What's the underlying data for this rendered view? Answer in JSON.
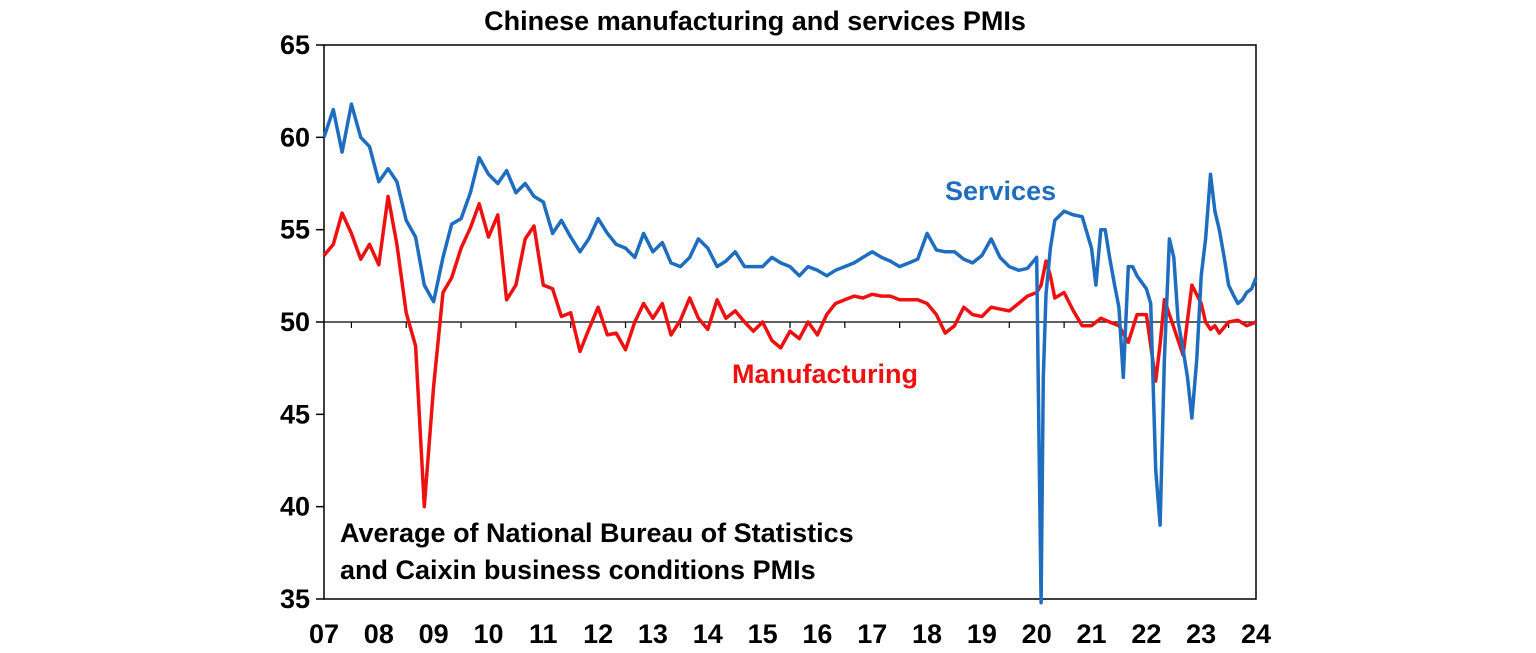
{
  "chart_data": {
    "type": "line",
    "title": "Chinese manufacturing and services PMIs",
    "note_lines": [
      "Average of National Bureau of Statistics",
      "and Caixin business conditions PMIs"
    ],
    "xlabel": "",
    "ylabel": "",
    "ylim": [
      35,
      65
    ],
    "yticks": [
      35,
      40,
      45,
      50,
      55,
      60,
      65
    ],
    "xlim": [
      2007.0,
      2024.0
    ],
    "xtick_labels": [
      "07",
      "08",
      "09",
      "10",
      "11",
      "12",
      "13",
      "14",
      "15",
      "16",
      "17",
      "18",
      "19",
      "20",
      "21",
      "22",
      "23",
      "24"
    ],
    "reference_line": 50,
    "grid": false,
    "series": [
      {
        "name": "Services",
        "color": "#1F6DBF",
        "x": [
          2007.0,
          2007.17,
          2007.33,
          2007.5,
          2007.67,
          2007.83,
          2008.0,
          2008.17,
          2008.33,
          2008.5,
          2008.67,
          2008.83,
          2009.0,
          2009.17,
          2009.33,
          2009.5,
          2009.67,
          2009.83,
          2010.0,
          2010.17,
          2010.33,
          2010.5,
          2010.67,
          2010.83,
          2011.0,
          2011.17,
          2011.33,
          2011.5,
          2011.67,
          2011.83,
          2012.0,
          2012.17,
          2012.33,
          2012.5,
          2012.67,
          2012.83,
          2013.0,
          2013.17,
          2013.33,
          2013.5,
          2013.67,
          2013.83,
          2014.0,
          2014.17,
          2014.33,
          2014.5,
          2014.67,
          2014.83,
          2015.0,
          2015.17,
          2015.33,
          2015.5,
          2015.67,
          2015.83,
          2016.0,
          2016.17,
          2016.33,
          2016.5,
          2016.67,
          2016.83,
          2017.0,
          2017.17,
          2017.33,
          2017.5,
          2017.67,
          2017.83,
          2018.0,
          2018.17,
          2018.33,
          2018.5,
          2018.67,
          2018.83,
          2019.0,
          2019.17,
          2019.33,
          2019.5,
          2019.67,
          2019.83,
          2020.0,
          2020.04,
          2020.08,
          2020.12,
          2020.17,
          2020.25,
          2020.33,
          2020.5,
          2020.67,
          2020.83,
          2021.0,
          2021.08,
          2021.17,
          2021.25,
          2021.33,
          2021.42,
          2021.5,
          2021.58,
          2021.67,
          2021.75,
          2021.83,
          2022.0,
          2022.08,
          2022.17,
          2022.25,
          2022.33,
          2022.42,
          2022.5,
          2022.58,
          2022.67,
          2022.75,
          2022.83,
          2022.92,
          2023.0,
          2023.08,
          2023.17,
          2023.25,
          2023.33,
          2023.42,
          2023.5,
          2023.58,
          2023.67,
          2023.75,
          2023.83,
          2023.92,
          2024.0
        ],
        "values": [
          60.0,
          61.5,
          59.2,
          61.8,
          60.0,
          59.5,
          57.6,
          58.3,
          57.6,
          55.5,
          54.6,
          52.0,
          51.1,
          53.5,
          55.3,
          55.6,
          57.0,
          58.9,
          58.0,
          57.5,
          58.2,
          57.0,
          57.5,
          56.8,
          56.5,
          54.8,
          55.5,
          54.6,
          53.8,
          54.5,
          55.6,
          54.8,
          54.2,
          54.0,
          53.5,
          54.8,
          53.8,
          54.3,
          53.2,
          53.0,
          53.5,
          54.5,
          54.0,
          53.0,
          53.3,
          53.8,
          53.0,
          53.0,
          53.0,
          53.5,
          53.2,
          53.0,
          52.5,
          53.0,
          52.8,
          52.5,
          52.8,
          53.0,
          53.2,
          53.5,
          53.8,
          53.5,
          53.3,
          53.0,
          53.2,
          53.4,
          54.8,
          53.9,
          53.8,
          53.8,
          53.4,
          53.2,
          53.6,
          54.5,
          53.5,
          53.0,
          52.8,
          52.9,
          53.5,
          44.0,
          34.8,
          47.0,
          51.5,
          54.0,
          55.5,
          56.0,
          55.8,
          55.7,
          54.0,
          52.0,
          55.0,
          55.0,
          53.5,
          52.0,
          50.8,
          47.0,
          53.0,
          53.0,
          52.5,
          51.8,
          51.0,
          42.0,
          39.0,
          48.0,
          54.5,
          53.5,
          50.0,
          48.5,
          47.0,
          44.8,
          48.0,
          52.5,
          54.5,
          58.0,
          56.0,
          55.0,
          53.5,
          52.0,
          51.5,
          51.0,
          51.2,
          51.6,
          51.8,
          52.4
        ]
      },
      {
        "name": "Manufacturing",
        "color": "#EE1111",
        "x": [
          2007.0,
          2007.17,
          2007.33,
          2007.5,
          2007.67,
          2007.83,
          2008.0,
          2008.17,
          2008.33,
          2008.5,
          2008.67,
          2008.83,
          2009.0,
          2009.17,
          2009.33,
          2009.5,
          2009.67,
          2009.83,
          2010.0,
          2010.17,
          2010.33,
          2010.5,
          2010.67,
          2010.83,
          2011.0,
          2011.17,
          2011.33,
          2011.5,
          2011.67,
          2011.83,
          2012.0,
          2012.17,
          2012.33,
          2012.5,
          2012.67,
          2012.83,
          2013.0,
          2013.17,
          2013.33,
          2013.5,
          2013.67,
          2013.83,
          2014.0,
          2014.17,
          2014.33,
          2014.5,
          2014.67,
          2014.83,
          2015.0,
          2015.17,
          2015.33,
          2015.5,
          2015.67,
          2015.83,
          2016.0,
          2016.17,
          2016.33,
          2016.5,
          2016.67,
          2016.83,
          2017.0,
          2017.17,
          2017.33,
          2017.5,
          2017.67,
          2017.83,
          2018.0,
          2018.17,
          2018.33,
          2018.5,
          2018.67,
          2018.83,
          2019.0,
          2019.17,
          2019.33,
          2019.5,
          2019.67,
          2019.83,
          2020.0,
          2020.08,
          2020.17,
          2020.25,
          2020.33,
          2020.5,
          2020.67,
          2020.83,
          2021.0,
          2021.17,
          2021.33,
          2021.5,
          2021.67,
          2021.83,
          2022.0,
          2022.17,
          2022.25,
          2022.33,
          2022.5,
          2022.67,
          2022.83,
          2023.0,
          2023.08,
          2023.17,
          2023.25,
          2023.33,
          2023.5,
          2023.67,
          2023.83,
          2024.0
        ],
        "values": [
          53.6,
          54.2,
          55.9,
          54.8,
          53.4,
          54.2,
          53.1,
          56.8,
          54.2,
          50.5,
          48.7,
          40.0,
          46.5,
          51.6,
          52.4,
          54.0,
          55.1,
          56.4,
          54.6,
          55.8,
          51.2,
          52.0,
          54.5,
          55.2,
          52.0,
          51.8,
          50.3,
          50.5,
          48.4,
          49.6,
          50.8,
          49.3,
          49.4,
          48.5,
          50.0,
          51.0,
          50.2,
          51.0,
          49.3,
          50.1,
          51.3,
          50.2,
          49.6,
          51.2,
          50.2,
          50.6,
          50.0,
          49.5,
          50.0,
          49.0,
          48.6,
          49.5,
          49.1,
          50.0,
          49.3,
          50.4,
          51.0,
          51.2,
          51.4,
          51.3,
          51.5,
          51.4,
          51.4,
          51.2,
          51.2,
          51.2,
          51.0,
          50.4,
          49.4,
          49.8,
          50.8,
          50.4,
          50.3,
          50.8,
          50.7,
          50.6,
          51.0,
          51.4,
          51.6,
          52.0,
          53.3,
          52.5,
          51.3,
          51.6,
          50.6,
          49.8,
          49.8,
          50.2,
          50.0,
          49.8,
          48.9,
          50.4,
          50.4,
          46.8,
          48.8,
          51.2,
          49.7,
          48.2,
          52.0,
          51.0,
          50.0,
          49.6,
          49.8,
          49.4,
          50.0,
          50.1,
          49.8,
          50.0
        ]
      }
    ],
    "series_labels": [
      "Services",
      "Manufacturing"
    ]
  }
}
